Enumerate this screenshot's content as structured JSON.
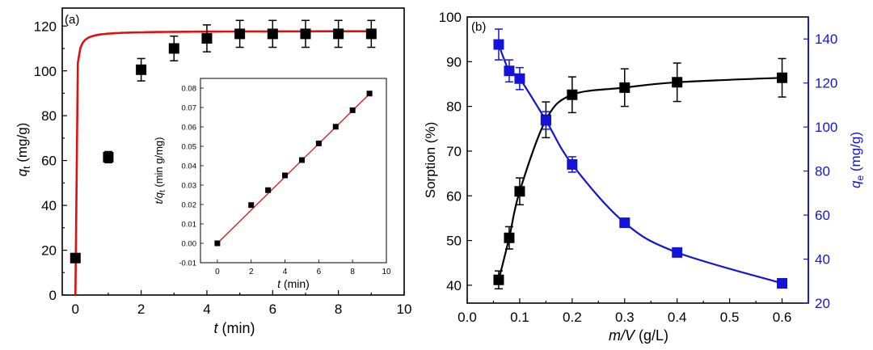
{
  "chart_data": [
    {
      "panel_label": "(a)",
      "type": "scatter",
      "xlabel_var": "t",
      "xlabel_unit": "(min)",
      "ylabel_var": "q",
      "ylabel_sub": "t",
      "ylabel_unit": "(mg/g)",
      "xlim": [
        -0.4,
        10
      ],
      "ylim": [
        0,
        128
      ],
      "xticks": [
        "0",
        "2",
        "4",
        "6",
        "8",
        "10"
      ],
      "yticks": [
        "0",
        "20",
        "40",
        "60",
        "80",
        "100",
        "120"
      ],
      "grid": false,
      "marker_color": "#000000",
      "fit_color": "#e01010",
      "series": [
        {
          "x": [
            0,
            1,
            2,
            3,
            4,
            5,
            6,
            7,
            8,
            9
          ],
          "y": [
            16.5,
            61.5,
            100.5,
            110,
            114.5,
            116.5,
            116.5,
            116.5,
            116.5,
            116.5
          ],
          "err": [
            2,
            2.5,
            5,
            5.5,
            6,
            6,
            6,
            6,
            6,
            6
          ]
        }
      ],
      "fit": {
        "qe": 117.8,
        "k": 0.82
      }
    },
    {
      "panel_label": "",
      "type": "scatter",
      "inset": true,
      "xlabel_var": "t",
      "xlabel_unit": "(min)",
      "ylabel_var": "t/q",
      "ylabel_sub": "t",
      "ylabel_unit": "(min g/mg)",
      "xlim": [
        -1,
        10
      ],
      "ylim": [
        -0.01,
        0.085
      ],
      "xticks": [
        "0",
        "2",
        "4",
        "6",
        "8",
        "10"
      ],
      "yticks": [
        "-0.01",
        "0.00",
        "0.01",
        "0.02",
        "0.03",
        "0.04",
        "0.05",
        "0.06",
        "0.07",
        "0.08"
      ],
      "grid": false,
      "marker_color": "#000000",
      "fit_color": "#e01010",
      "series": [
        {
          "x": [
            0,
            2,
            3,
            4,
            5,
            6,
            7,
            8,
            9
          ],
          "y": [
            0.0,
            0.0197,
            0.0274,
            0.035,
            0.0429,
            0.0515,
            0.0601,
            0.0686,
            0.0772
          ]
        }
      ],
      "fit": {
        "slope": 0.00856,
        "intercept": 0.0
      }
    },
    {
      "panel_label": "(b)",
      "type": "line",
      "xlabel_var": "m/V",
      "xlabel_unit": "(g/L)",
      "ylabel": "Sorption (%)",
      "y2label_var": "q",
      "y2label_sub": "e",
      "y2label_unit": "(mg/g)",
      "xlim": [
        0,
        0.65
      ],
      "ylim": [
        36,
        100
      ],
      "y2lim": [
        20,
        150
      ],
      "xticks": [
        "0.0",
        "0.1",
        "0.2",
        "0.3",
        "0.4",
        "0.5",
        "0.6"
      ],
      "yticks": [
        "40",
        "50",
        "60",
        "70",
        "80",
        "90",
        "100"
      ],
      "y2ticks": [
        "20",
        "40",
        "60",
        "80",
        "100",
        "120",
        "140"
      ],
      "grid": false,
      "secondary_axis_color": "#1414d8",
      "series": [
        {
          "axis": "left",
          "color": "#000000",
          "x": [
            0.06,
            0.08,
            0.1,
            0.15,
            0.2,
            0.3,
            0.4,
            0.6
          ],
          "y": [
            41.2,
            50.6,
            61.0,
            77.0,
            82.6,
            84.2,
            85.4,
            86.4
          ],
          "err": [
            2,
            2.5,
            3,
            4,
            4,
            4.2,
            4.3,
            4.3
          ]
        },
        {
          "axis": "right",
          "color": "#1414d8",
          "x": [
            0.06,
            0.08,
            0.1,
            0.15,
            0.2,
            0.3,
            0.4,
            0.6
          ],
          "y": [
            137.5,
            125.5,
            122.0,
            103.0,
            83.0,
            56.5,
            43.0,
            29.0
          ],
          "err": [
            7,
            5,
            5,
            4,
            3.5,
            2,
            1.5,
            1
          ]
        }
      ]
    }
  ]
}
